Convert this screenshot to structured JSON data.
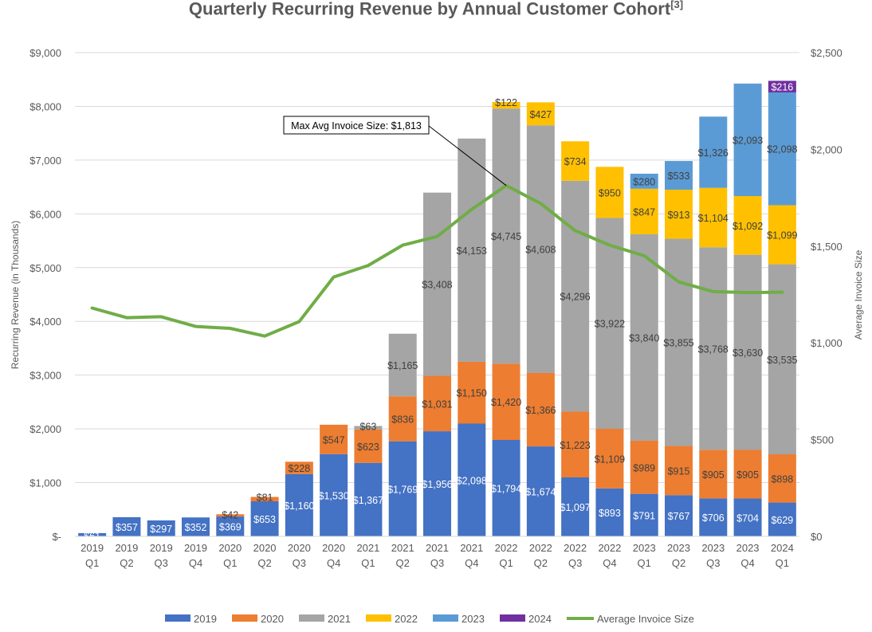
{
  "chart_data": {
    "type": "bar",
    "stacked": true,
    "title": "Quarterly Recurring Revenue by Annual Customer Cohort",
    "title_footnote": "[3]",
    "ylabel": "Recurring Revenue (in Thousands)",
    "y2label": "Average Invoice  Size",
    "ylim": [
      0,
      9000
    ],
    "y2lim": [
      0,
      2500
    ],
    "y_ticks": [
      {
        "v": 0,
        "label": "$-"
      },
      {
        "v": 1000,
        "label": "$1,000"
      },
      {
        "v": 2000,
        "label": "$2,000"
      },
      {
        "v": 3000,
        "label": "$3,000"
      },
      {
        "v": 4000,
        "label": "$4,000"
      },
      {
        "v": 5000,
        "label": "$5,000"
      },
      {
        "v": 6000,
        "label": "$6,000"
      },
      {
        "v": 7000,
        "label": "$7,000"
      },
      {
        "v": 8000,
        "label": "$8,000"
      },
      {
        "v": 9000,
        "label": "$9,000"
      }
    ],
    "y2_ticks": [
      {
        "v": 0,
        "label": "$0"
      },
      {
        "v": 500,
        "label": "$500"
      },
      {
        "v": 1000,
        "label": "$1,000"
      },
      {
        "v": 1500,
        "label": "$1,500"
      },
      {
        "v": 2000,
        "label": "$2,000"
      },
      {
        "v": 2500,
        "label": "$2,500"
      }
    ],
    "categories": [
      [
        "2019",
        "Q1"
      ],
      [
        "2019",
        "Q2"
      ],
      [
        "2019",
        "Q3"
      ],
      [
        "2019",
        "Q4"
      ],
      [
        "2020",
        "Q1"
      ],
      [
        "2020",
        "Q2"
      ],
      [
        "2020",
        "Q3"
      ],
      [
        "2020",
        "Q4"
      ],
      [
        "2021",
        "Q1"
      ],
      [
        "2021",
        "Q2"
      ],
      [
        "2021",
        "Q3"
      ],
      [
        "2021",
        "Q4"
      ],
      [
        "2022",
        "Q1"
      ],
      [
        "2022",
        "Q2"
      ],
      [
        "2022",
        "Q3"
      ],
      [
        "2022",
        "Q4"
      ],
      [
        "2023",
        "Q1"
      ],
      [
        "2023",
        "Q2"
      ],
      [
        "2023",
        "Q3"
      ],
      [
        "2023",
        "Q4"
      ],
      [
        "2024",
        "Q1"
      ]
    ],
    "series": [
      {
        "name": "2019",
        "color": "#4472C4",
        "label_color": "#ffffff",
        "values": [
          61,
          357,
          297,
          352,
          369,
          653,
          1160,
          1530,
          1367,
          1769,
          1956,
          2098,
          1794,
          1674,
          1097,
          893,
          791,
          767,
          706,
          704,
          629
        ],
        "labels": [
          "$61",
          "$357",
          "$297",
          "$352",
          "$369",
          "$653",
          "$1,160",
          "$1,530",
          "$1,367",
          "$1,769",
          "$1,956",
          "$2,098",
          "$1,794",
          "$1,674",
          "$1,097",
          "$893",
          "$791",
          "$767",
          "$706",
          "$704",
          "$629"
        ]
      },
      {
        "name": "2020",
        "color": "#ED7D31",
        "label_color": "#404040",
        "values": [
          0,
          0,
          0,
          0,
          42,
          81,
          228,
          547,
          623,
          836,
          1031,
          1150,
          1420,
          1366,
          1223,
          1109,
          989,
          915,
          905,
          905,
          898
        ],
        "labels": [
          "",
          "",
          "",
          "",
          "$42",
          "$81",
          "$228",
          "$547",
          "$623",
          "$836",
          "$1,031",
          "$1,150",
          "$1,420",
          "$1,366",
          "$1,223",
          "$1,109",
          "$989",
          "$915",
          "$905",
          "$905",
          "$898"
        ]
      },
      {
        "name": "2021",
        "color": "#A5A5A5",
        "label_color": "#404040",
        "values": [
          0,
          0,
          0,
          0,
          0,
          0,
          0,
          0,
          63,
          1165,
          3408,
          4153,
          4745,
          4608,
          4296,
          3922,
          3840,
          3855,
          3768,
          3630,
          3535
        ],
        "labels": [
          "",
          "",
          "",
          "",
          "",
          "",
          "",
          "",
          "$63",
          "$1,165",
          "$3,408",
          "$4,153",
          "$4,745",
          "$4,608",
          "$4,296",
          "$3,922",
          "$3,840",
          "$3,855",
          "$3,768",
          "$3,630",
          "$3,535"
        ]
      },
      {
        "name": "2022",
        "color": "#FFC000",
        "label_color": "#404040",
        "values": [
          0,
          0,
          0,
          0,
          0,
          0,
          0,
          0,
          0,
          0,
          0,
          0,
          122,
          427,
          734,
          950,
          847,
          913,
          1104,
          1092,
          1099
        ],
        "labels": [
          "",
          "",
          "",
          "",
          "",
          "",
          "",
          "",
          "",
          "",
          "",
          "",
          "$122",
          "$427",
          "$734",
          "$950",
          "$847",
          "$913",
          "$1,104",
          "$1,092",
          "$1,099"
        ]
      },
      {
        "name": "2023",
        "color": "#5B9BD5",
        "label_color": "#404040",
        "values": [
          0,
          0,
          0,
          0,
          0,
          0,
          0,
          0,
          0,
          0,
          0,
          0,
          0,
          0,
          0,
          0,
          280,
          533,
          1326,
          2093,
          2098
        ],
        "labels": [
          "",
          "",
          "",
          "",
          "",
          "",
          "",
          "",
          "",
          "",
          "",
          "",
          "",
          "",
          "",
          "",
          "$280",
          "$533",
          "$1,326",
          "$2,093",
          "$2,098"
        ]
      },
      {
        "name": "2024",
        "color": "#7030A0",
        "label_color": "#ffffff",
        "values": [
          0,
          0,
          0,
          0,
          0,
          0,
          0,
          0,
          0,
          0,
          0,
          0,
          0,
          0,
          0,
          0,
          0,
          0,
          0,
          0,
          216
        ],
        "labels": [
          "",
          "",
          "",
          "",
          "",
          "",
          "",
          "",
          "",
          "",
          "",
          "",
          "",
          "",
          "",
          "",
          "",
          "",
          "",
          "",
          "$216"
        ]
      }
    ],
    "line": {
      "name": "Average Invoice Size",
      "color": "#70AD47",
      "axis": "right",
      "values": [
        1180,
        1130,
        1135,
        1085,
        1075,
        1035,
        1110,
        1340,
        1400,
        1505,
        1550,
        1690,
        1813,
        1720,
        1580,
        1505,
        1450,
        1315,
        1265,
        1260,
        1262
      ]
    },
    "annotation": {
      "text": "Max Avg Invoice Size: $1,813",
      "target_index": 12
    }
  }
}
